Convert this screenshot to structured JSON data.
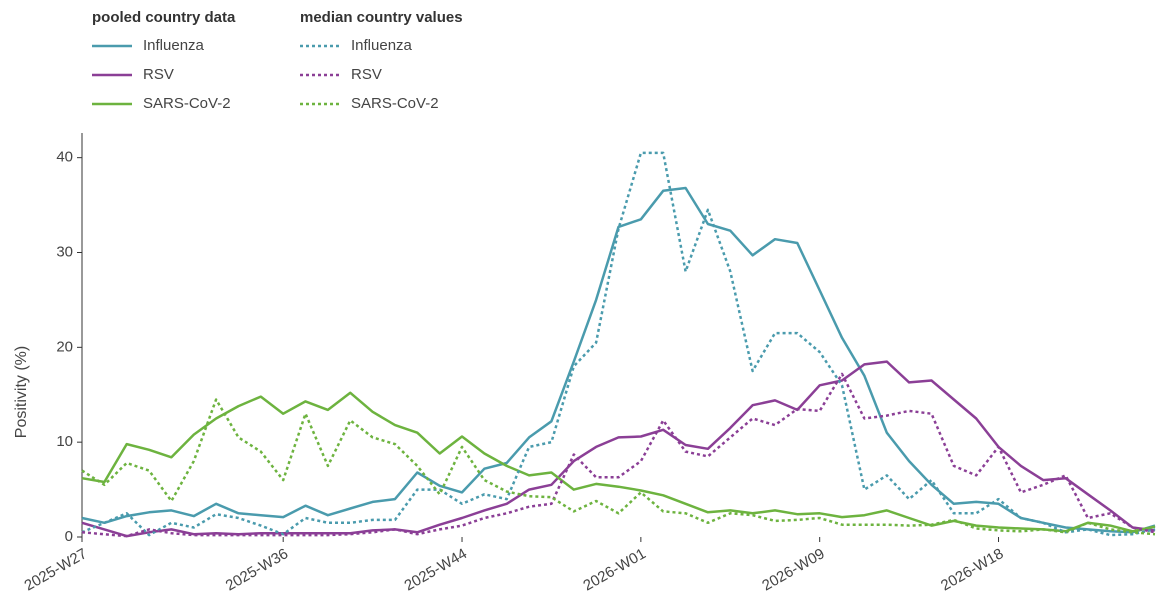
{
  "chart_data": {
    "type": "line",
    "y_label": "Positivity (%)",
    "legend_titles": [
      "pooled country data",
      "median country values"
    ],
    "categories": [
      "2025-W27",
      null,
      null,
      null,
      null,
      null,
      null,
      null,
      null,
      "2025-W36",
      null,
      null,
      null,
      null,
      null,
      null,
      null,
      "2025-W44",
      null,
      null,
      null,
      null,
      null,
      null,
      null,
      "2026-W01",
      null,
      null,
      null,
      null,
      null,
      null,
      null,
      "2026-W09",
      null,
      null,
      null,
      null,
      null,
      null,
      null,
      "2026-W18",
      null,
      null,
      null,
      null,
      null,
      null,
      null
    ],
    "ylim": [
      0,
      42.6
    ],
    "yticks": [
      0,
      10,
      20,
      30,
      40
    ],
    "series": [
      {
        "name": "Influenza",
        "group": 0,
        "color": "#4a9bad",
        "dashed": false,
        "values": [
          2.0,
          1.5,
          2.2,
          2.6,
          2.8,
          2.2,
          3.5,
          2.5,
          2.3,
          2.1,
          3.3,
          2.3,
          3.0,
          3.7,
          4.0,
          6.8,
          5.4,
          4.7,
          7.2,
          7.8,
          10.5,
          12.2,
          18.5,
          25,
          32.7,
          33.5,
          36.5,
          36.8,
          33,
          32.3,
          29.7,
          31.4,
          31,
          26,
          21,
          17,
          11,
          8,
          5.5,
          3.5,
          3.7,
          3.5,
          2,
          1.5,
          1,
          0.8,
          0.6,
          0.5,
          1.2
        ]
      },
      {
        "name": "RSV",
        "group": 0,
        "color": "#8b3f96",
        "dashed": false,
        "values": [
          1.5,
          0.8,
          0.1,
          0.5,
          0.8,
          0.3,
          0.4,
          0.3,
          0.4,
          0.4,
          0.4,
          0.4,
          0.4,
          0.7,
          0.8,
          0.5,
          1.3,
          2,
          2.8,
          3.5,
          5,
          5.5,
          8,
          9.5,
          10.5,
          10.6,
          11.3,
          9.7,
          9.3,
          11.5,
          13.9,
          14.4,
          13.4,
          16,
          16.5,
          18.2,
          18.5,
          16.3,
          16.5,
          14.5,
          12.5,
          9.5,
          7.5,
          6,
          6.2,
          4.5,
          2.8,
          1.0,
          0.7
        ]
      },
      {
        "name": "SARS-CoV-2",
        "group": 0,
        "color": "#6db33f",
        "dashed": false,
        "values": [
          6.2,
          5.8,
          9.8,
          9.2,
          8.4,
          10.8,
          12.5,
          13.8,
          14.8,
          13,
          14.3,
          13.4,
          15.2,
          13.2,
          11.8,
          11,
          8.8,
          10.6,
          8.8,
          7.5,
          6.5,
          6.8,
          5,
          5.6,
          5.3,
          4.9,
          4.4,
          3.5,
          2.6,
          2.8,
          2.5,
          2.8,
          2.4,
          2.5,
          2.1,
          2.3,
          2.8,
          2,
          1.2,
          1.7,
          1.2,
          1,
          0.9,
          0.8,
          0.6,
          1.5,
          1.2,
          0.6,
          1.1
        ]
      },
      {
        "name": "Influenza",
        "group": 1,
        "color": "#4a9bad",
        "dashed": true,
        "values": [
          0.5,
          1.5,
          2.5,
          0.2,
          1.5,
          1,
          2.4,
          2,
          1.2,
          0.3,
          2,
          1.5,
          1.5,
          1.8,
          1.8,
          5,
          5,
          3.5,
          4.5,
          4,
          9.5,
          10,
          18,
          20.5,
          32.5,
          40.5,
          40.5,
          28,
          34.5,
          28,
          17.5,
          21.5,
          21.5,
          19.5,
          16,
          5,
          6.5,
          4,
          6,
          2.5,
          2.5,
          4,
          2,
          1.5,
          0.5,
          0.8,
          0.2,
          0.3,
          0.8
        ]
      },
      {
        "name": "RSV",
        "group": 1,
        "color": "#8b3f96",
        "dashed": true,
        "values": [
          0.5,
          0.3,
          0.1,
          0.8,
          0.4,
          0.2,
          0.2,
          0.2,
          0.2,
          0.2,
          0.2,
          0.2,
          0.3,
          0.5,
          0.8,
          0.3,
          0.8,
          1.2,
          2,
          2.5,
          3.2,
          3.5,
          8.7,
          6.3,
          6.3,
          8,
          12.3,
          9,
          8.5,
          10.5,
          12.5,
          11.8,
          13.5,
          13.3,
          17.2,
          12.5,
          12.8,
          13.3,
          13,
          7.5,
          6.5,
          9.5,
          4.7,
          5.5,
          6.5,
          2,
          2.5,
          1,
          0.5
        ]
      },
      {
        "name": "SARS-CoV-2",
        "group": 1,
        "color": "#6db33f",
        "dashed": true,
        "values": [
          7,
          5.5,
          7.8,
          7,
          3.8,
          8,
          14.5,
          10.5,
          9,
          6,
          13,
          7.5,
          12.3,
          10.5,
          9.8,
          7.5,
          4.5,
          9.5,
          6,
          4.8,
          4.3,
          4.2,
          2.7,
          3.8,
          2.5,
          4.7,
          2.7,
          2.5,
          1.5,
          2.5,
          2.3,
          1.7,
          1.8,
          2,
          1.3,
          1.3,
          1.3,
          1.2,
          1.3,
          1.8,
          0.9,
          0.7,
          0.6,
          0.8,
          0.5,
          1.5,
          0.8,
          0.5,
          0.3
        ]
      }
    ]
  }
}
